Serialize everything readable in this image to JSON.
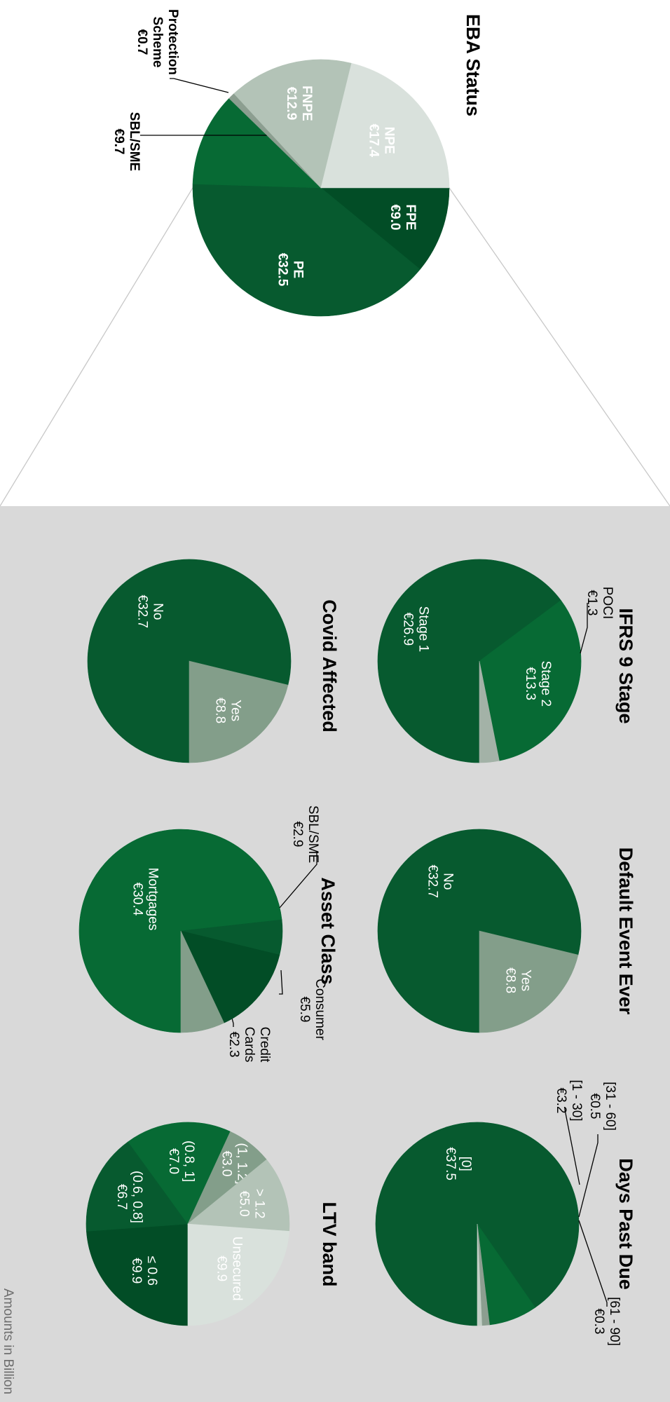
{
  "footnote": "Amounts in Billion",
  "colors": {
    "panel_bg": "#d9d9d9",
    "connector": "#c8c8c8",
    "leader": "#000000",
    "label_light": "#ffffff",
    "label_dark": "#000000"
  },
  "chart_data": [
    {
      "type": "pie",
      "title": "EBA Status",
      "categories": [
        "FPE",
        "PE",
        "SBL/SME",
        "Protection Scheme",
        "FNPE",
        "NPE"
      ],
      "value_labels": [
        "€9.0",
        "€32.5",
        "€9.7",
        "€0.7",
        "€12.9",
        "€17.4"
      ],
      "values": [
        9.0,
        32.5,
        9.7,
        0.7,
        12.9,
        17.4
      ],
      "colors": [
        "#024d26",
        "#075a2f",
        "#076a34",
        "#8c9e90",
        "#b3c3b7",
        "#d9e1dc"
      ]
    },
    {
      "type": "pie",
      "title": "IFRS 9 Stage",
      "categories": [
        "Stage 1",
        "Stage 2",
        "POCI"
      ],
      "value_labels": [
        "€26.9",
        "€13.3",
        "€1.3"
      ],
      "values": [
        26.9,
        13.3,
        1.3
      ],
      "colors": [
        "#075a2f",
        "#076a34",
        "#a3b2a7"
      ]
    },
    {
      "type": "pie",
      "title": "Covid Affected",
      "categories": [
        "No",
        "Yes"
      ],
      "value_labels": [
        "€32.7",
        "€8.8"
      ],
      "values": [
        32.7,
        8.8
      ],
      "colors": [
        "#075a2f",
        "#839e8a"
      ]
    },
    {
      "type": "pie",
      "title": "Default Event Ever",
      "categories": [
        "No",
        "Yes"
      ],
      "value_labels": [
        "€32.7",
        "€8.8"
      ],
      "values": [
        32.7,
        8.8
      ],
      "colors": [
        "#075a2f",
        "#839e8a"
      ]
    },
    {
      "type": "pie",
      "title": "Asset Class",
      "categories": [
        "Mortgages",
        "Credit Cards",
        "Consumer",
        "SBL/SME"
      ],
      "value_labels": [
        "€30.4",
        "€2.3",
        "€5.9",
        "€2.9"
      ],
      "values": [
        30.4,
        2.3,
        5.9,
        2.9
      ],
      "colors": [
        "#076a34",
        "#075a2f",
        "#024d26",
        "#839e8a"
      ]
    },
    {
      "type": "pie",
      "title": "Days Past Due",
      "categories": [
        "[0]",
        "[1 - 30]",
        "[31 - 60]",
        "[61 - 90]"
      ],
      "value_labels": [
        "€37.5",
        "€3.2",
        "€0.5",
        "€0.3"
      ],
      "values": [
        37.5,
        3.2,
        0.5,
        0.3
      ],
      "colors": [
        "#075a2f",
        "#076a34",
        "#8c9e90",
        "#c3cfc6"
      ]
    },
    {
      "type": "pie",
      "title": "LTV band",
      "categories": [
        "≤ 0.6",
        "(0.6, 0.8]",
        "(0.8, 1]",
        "(1, 1.2]",
        "> 1.2",
        "Unsecured"
      ],
      "value_labels": [
        "€9.9",
        "€6.7",
        "€7.0",
        "€3.0",
        "€5.0",
        "€9.9"
      ],
      "values": [
        9.9,
        6.7,
        7.0,
        3.0,
        5.0,
        9.9
      ],
      "colors": [
        "#024d26",
        "#075a2f",
        "#076a34",
        "#839e8a",
        "#b3c3b7",
        "#d9e1dc"
      ]
    }
  ]
}
